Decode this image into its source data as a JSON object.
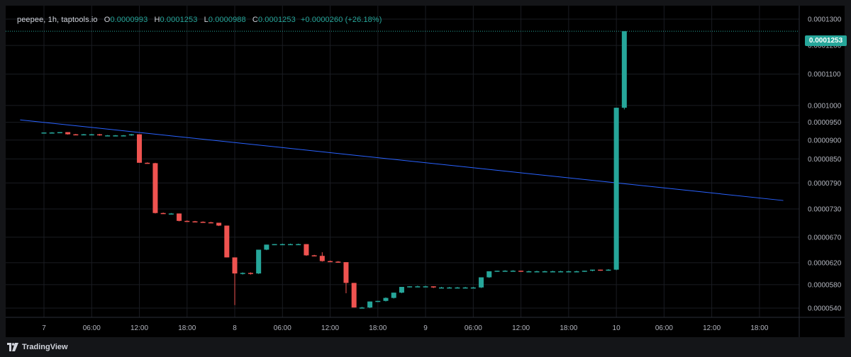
{
  "legend": {
    "symbol": "peepee, 1h, taptools.io",
    "o_label": "O",
    "o_value": "0.0000993",
    "h_label": "H",
    "h_value": "0.0001253",
    "l_label": "L",
    "l_value": "0.0000988",
    "c_label": "C",
    "c_value": "0.0001253",
    "change": "+0.0000260 (+26.18%)"
  },
  "last_price_label": "0.0001253",
  "footer": {
    "brand": "TradingView"
  },
  "colors": {
    "up": "#26a69a",
    "down": "#ef5350",
    "ma": "#2962ff",
    "background": "#000000",
    "grid": "#1a1c22"
  },
  "chart_data": {
    "type": "candlestick",
    "x_tick_labels": [
      "7",
      "06:00",
      "12:00",
      "18:00",
      "8",
      "06:00",
      "12:00",
      "18:00",
      "9",
      "06:00",
      "12:00",
      "18:00",
      "10",
      "06:00",
      "12:00",
      "18:00"
    ],
    "y_tick_labels": [
      "0.0001300",
      "0.0001200",
      "0.0001100",
      "0.0001000",
      "0.0000950",
      "0.0000900",
      "0.0000850",
      "0.0000790",
      "0.0000730",
      "0.0000670",
      "0.0000620",
      "0.0000580",
      "0.0000540"
    ],
    "y_scale": "log",
    "last_price": 0.0001253,
    "candles": [
      {
        "t": "7 00:00",
        "o": 9.21e-05,
        "h": 9.21e-05,
        "l": 9.2e-05,
        "c": 9.21e-05
      },
      {
        "t": "7 01:00",
        "o": 9.21e-05,
        "h": 9.22e-05,
        "l": 9.2e-05,
        "c": 9.21e-05
      },
      {
        "t": "7 02:00",
        "o": 9.21e-05,
        "h": 9.22e-05,
        "l": 9.2e-05,
        "c": 9.22e-05
      },
      {
        "t": "7 03:00",
        "o": 9.22e-05,
        "h": 9.22e-05,
        "l": 9.15e-05,
        "c": 9.16e-05
      },
      {
        "t": "7 04:00",
        "o": 9.16e-05,
        "h": 9.17e-05,
        "l": 9.14e-05,
        "c": 9.14e-05
      },
      {
        "t": "7 05:00",
        "o": 9.14e-05,
        "h": 9.17e-05,
        "l": 9.14e-05,
        "c": 9.16e-05
      },
      {
        "t": "7 06:00",
        "o": 9.16e-05,
        "h": 9.17e-05,
        "l": 9.15e-05,
        "c": 9.16e-05
      },
      {
        "t": "7 07:00",
        "o": 9.16e-05,
        "h": 9.17e-05,
        "l": 9.12e-05,
        "c": 9.13e-05
      },
      {
        "t": "7 08:00",
        "o": 9.13e-05,
        "h": 9.14e-05,
        "l": 9.12e-05,
        "c": 9.13e-05
      },
      {
        "t": "7 09:00",
        "o": 9.13e-05,
        "h": 9.14e-05,
        "l": 9.12e-05,
        "c": 9.13e-05
      },
      {
        "t": "7 10:00",
        "o": 9.13e-05,
        "h": 9.14e-05,
        "l": 9.12e-05,
        "c": 9.13e-05
      },
      {
        "t": "7 11:00",
        "o": 9.13e-05,
        "h": 9.17e-05,
        "l": 9.12e-05,
        "c": 9.16e-05
      },
      {
        "t": "7 12:00",
        "o": 9.16e-05,
        "h": 9.16e-05,
        "l": 8.4e-05,
        "c": 8.4e-05
      },
      {
        "t": "7 13:00",
        "o": 8.4e-05,
        "h": 8.41e-05,
        "l": 8.38e-05,
        "c": 8.39e-05
      },
      {
        "t": "7 14:00",
        "o": 8.39e-05,
        "h": 8.4e-05,
        "l": 7.2e-05,
        "c": 7.21e-05
      },
      {
        "t": "7 15:00",
        "o": 7.21e-05,
        "h": 7.22e-05,
        "l": 7.19e-05,
        "c": 7.2e-05
      },
      {
        "t": "7 16:00",
        "o": 7.2e-05,
        "h": 7.21e-05,
        "l": 7.19e-05,
        "c": 7.2e-05
      },
      {
        "t": "7 17:00",
        "o": 7.2e-05,
        "h": 7.2e-05,
        "l": 7.03e-05,
        "c": 7.04e-05
      },
      {
        "t": "7 18:00",
        "o": 7.04e-05,
        "h": 7.05e-05,
        "l": 7.02e-05,
        "c": 7.03e-05
      },
      {
        "t": "7 19:00",
        "o": 7.03e-05,
        "h": 7.04e-05,
        "l": 7.01e-05,
        "c": 7.02e-05
      },
      {
        "t": "7 20:00",
        "o": 7.02e-05,
        "h": 7.03e-05,
        "l": 7e-05,
        "c": 7.01e-05
      },
      {
        "t": "7 21:00",
        "o": 7.01e-05,
        "h": 7.02e-05,
        "l": 6.99e-05,
        "c": 7e-05
      },
      {
        "t": "7 22:00",
        "o": 7e-05,
        "h": 7e-05,
        "l": 6.93e-05,
        "c": 6.94e-05
      },
      {
        "t": "7 23:00",
        "o": 6.94e-05,
        "h": 6.94e-05,
        "l": 6.3e-05,
        "c": 6.3e-05
      },
      {
        "t": "8 00:00",
        "o": 6.3e-05,
        "h": 6.3e-05,
        "l": 5.45e-05,
        "c": 6e-05
      },
      {
        "t": "8 01:00",
        "o": 6e-05,
        "h": 6.02e-05,
        "l": 5.98e-05,
        "c": 6.01e-05
      },
      {
        "t": "8 02:00",
        "o": 6.01e-05,
        "h": 6.02e-05,
        "l": 5.98e-05,
        "c": 6e-05
      },
      {
        "t": "8 03:00",
        "o": 6e-05,
        "h": 6.45e-05,
        "l": 5.99e-05,
        "c": 6.45e-05
      },
      {
        "t": "8 04:00",
        "o": 6.45e-05,
        "h": 6.55e-05,
        "l": 6.44e-05,
        "c": 6.55e-05
      },
      {
        "t": "8 05:00",
        "o": 6.55e-05,
        "h": 6.56e-05,
        "l": 6.54e-05,
        "c": 6.56e-05
      },
      {
        "t": "8 06:00",
        "o": 6.56e-05,
        "h": 6.57e-05,
        "l": 6.55e-05,
        "c": 6.56e-05
      },
      {
        "t": "8 07:00",
        "o": 6.56e-05,
        "h": 6.57e-05,
        "l": 6.55e-05,
        "c": 6.56e-05
      },
      {
        "t": "8 08:00",
        "o": 6.56e-05,
        "h": 6.57e-05,
        "l": 6.55e-05,
        "c": 6.56e-05
      },
      {
        "t": "8 09:00",
        "o": 6.56e-05,
        "h": 6.56e-05,
        "l": 6.33e-05,
        "c": 6.34e-05
      },
      {
        "t": "8 10:00",
        "o": 6.34e-05,
        "h": 6.35e-05,
        "l": 6.32e-05,
        "c": 6.33e-05
      },
      {
        "t": "8 11:00",
        "o": 6.33e-05,
        "h": 6.4e-05,
        "l": 6.22e-05,
        "c": 6.23e-05
      },
      {
        "t": "8 12:00",
        "o": 6.23e-05,
        "h": 6.24e-05,
        "l": 6.21e-05,
        "c": 6.22e-05
      },
      {
        "t": "8 13:00",
        "o": 6.22e-05,
        "h": 6.23e-05,
        "l": 6.2e-05,
        "c": 6.21e-05
      },
      {
        "t": "8 14:00",
        "o": 6.21e-05,
        "h": 6.21e-05,
        "l": 5.65e-05,
        "c": 5.83e-05
      },
      {
        "t": "8 15:00",
        "o": 5.83e-05,
        "h": 5.83e-05,
        "l": 5.41e-05,
        "c": 5.41e-05
      },
      {
        "t": "8 16:00",
        "o": 5.41e-05,
        "h": 5.42e-05,
        "l": 5.4e-05,
        "c": 5.41e-05
      },
      {
        "t": "8 17:00",
        "o": 5.41e-05,
        "h": 5.51e-05,
        "l": 5.4e-05,
        "c": 5.51e-05
      },
      {
        "t": "8 18:00",
        "o": 5.51e-05,
        "h": 5.52e-05,
        "l": 5.5e-05,
        "c": 5.52e-05
      },
      {
        "t": "8 19:00",
        "o": 5.52e-05,
        "h": 5.58e-05,
        "l": 5.51e-05,
        "c": 5.57e-05
      },
      {
        "t": "8 20:00",
        "o": 5.57e-05,
        "h": 5.66e-05,
        "l": 5.56e-05,
        "c": 5.66e-05
      },
      {
        "t": "8 21:00",
        "o": 5.66e-05,
        "h": 5.76e-05,
        "l": 5.65e-05,
        "c": 5.76e-05
      },
      {
        "t": "8 22:00",
        "o": 5.76e-05,
        "h": 5.77e-05,
        "l": 5.75e-05,
        "c": 5.77e-05
      },
      {
        "t": "8 23:00",
        "o": 5.77e-05,
        "h": 5.78e-05,
        "l": 5.76e-05,
        "c": 5.77e-05
      },
      {
        "t": "9 00:00",
        "o": 5.77e-05,
        "h": 5.78e-05,
        "l": 5.76e-05,
        "c": 5.77e-05
      },
      {
        "t": "9 01:00",
        "o": 5.77e-05,
        "h": 5.77e-05,
        "l": 5.74e-05,
        "c": 5.75e-05
      },
      {
        "t": "9 02:00",
        "o": 5.75e-05,
        "h": 5.76e-05,
        "l": 5.74e-05,
        "c": 5.75e-05
      },
      {
        "t": "9 03:00",
        "o": 5.75e-05,
        "h": 5.76e-05,
        "l": 5.74e-05,
        "c": 5.75e-05
      },
      {
        "t": "9 04:00",
        "o": 5.75e-05,
        "h": 5.76e-05,
        "l": 5.74e-05,
        "c": 5.75e-05
      },
      {
        "t": "9 05:00",
        "o": 5.75e-05,
        "h": 5.76e-05,
        "l": 5.74e-05,
        "c": 5.75e-05
      },
      {
        "t": "9 06:00",
        "o": 5.75e-05,
        "h": 5.76e-05,
        "l": 5.74e-05,
        "c": 5.75e-05
      },
      {
        "t": "9 07:00",
        "o": 5.75e-05,
        "h": 5.93e-05,
        "l": 5.74e-05,
        "c": 5.93e-05
      },
      {
        "t": "9 08:00",
        "o": 5.93e-05,
        "h": 6.04e-05,
        "l": 5.92e-05,
        "c": 6.04e-05
      },
      {
        "t": "9 09:00",
        "o": 6.04e-05,
        "h": 6.05e-05,
        "l": 6.03e-05,
        "c": 6.05e-05
      },
      {
        "t": "9 10:00",
        "o": 6.05e-05,
        "h": 6.06e-05,
        "l": 6.04e-05,
        "c": 6.05e-05
      },
      {
        "t": "9 11:00",
        "o": 6.05e-05,
        "h": 6.06e-05,
        "l": 6.04e-05,
        "c": 6.05e-05
      },
      {
        "t": "9 12:00",
        "o": 6.05e-05,
        "h": 6.05e-05,
        "l": 6.03e-05,
        "c": 6.04e-05
      },
      {
        "t": "9 13:00",
        "o": 6.04e-05,
        "h": 6.05e-05,
        "l": 6.03e-05,
        "c": 6.04e-05
      },
      {
        "t": "9 14:00",
        "o": 6.04e-05,
        "h": 6.05e-05,
        "l": 6.03e-05,
        "c": 6.04e-05
      },
      {
        "t": "9 15:00",
        "o": 6.04e-05,
        "h": 6.05e-05,
        "l": 6.03e-05,
        "c": 6.04e-05
      },
      {
        "t": "9 16:00",
        "o": 6.04e-05,
        "h": 6.05e-05,
        "l": 6.03e-05,
        "c": 6.04e-05
      },
      {
        "t": "9 17:00",
        "o": 6.04e-05,
        "h": 6.05e-05,
        "l": 6.03e-05,
        "c": 6.04e-05
      },
      {
        "t": "9 18:00",
        "o": 6.04e-05,
        "h": 6.05e-05,
        "l": 6.03e-05,
        "c": 6.04e-05
      },
      {
        "t": "9 19:00",
        "o": 6.04e-05,
        "h": 6.05e-05,
        "l": 6.03e-05,
        "c": 6.04e-05
      },
      {
        "t": "9 20:00",
        "o": 6.04e-05,
        "h": 6.05e-05,
        "l": 6.03e-05,
        "c": 6.05e-05
      },
      {
        "t": "9 21:00",
        "o": 6.05e-05,
        "h": 6.07e-05,
        "l": 6.04e-05,
        "c": 6.07e-05
      },
      {
        "t": "9 22:00",
        "o": 6.07e-05,
        "h": 6.07e-05,
        "l": 6.05e-05,
        "c": 6.06e-05
      },
      {
        "t": "9 23:00",
        "o": 6.06e-05,
        "h": 6.08e-05,
        "l": 6.05e-05,
        "c": 6.07e-05
      },
      {
        "t": "10 00:00",
        "o": 6.07e-05,
        "h": 9.93e-05,
        "l": 6.06e-05,
        "c": 9.93e-05
      },
      {
        "t": "10 01:00",
        "o": 9.93e-05,
        "h": 0.0001253,
        "l": 9.88e-05,
        "c": 0.0001253
      }
    ],
    "ma_line": [
      {
        "t": "6 21:00",
        "v": 9.57e-05
      },
      {
        "t": "10 21:00",
        "v": 7.49e-05
      }
    ]
  }
}
